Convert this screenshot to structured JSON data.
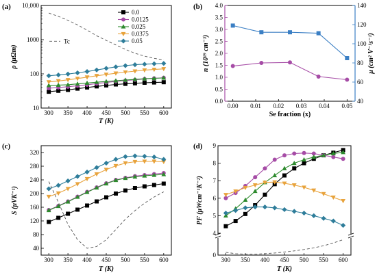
{
  "chart_data": [
    {
      "id": "a",
      "panel_label": "(a)",
      "type": "line",
      "scale_y": "log",
      "xlabel": "T (K)",
      "ylabel": "ρ (μΩm)",
      "xlim": [
        280,
        620
      ],
      "ylim": [
        10,
        10000
      ],
      "xticks": [
        300,
        350,
        400,
        450,
        500,
        550,
        600
      ],
      "yticks": [
        {
          "v": 10,
          "label": "10"
        },
        {
          "v": 100,
          "label": "100"
        },
        {
          "v": 1000,
          "label": "1000"
        },
        {
          "v": 10000,
          "label": "10,000"
        }
      ],
      "legend": {
        "placement": "top-right"
      },
      "x": [
        300,
        325,
        350,
        375,
        400,
        425,
        450,
        475,
        500,
        525,
        550,
        575,
        600
      ],
      "series": [
        {
          "name": "0.0",
          "color": "#000000",
          "marker": "square",
          "values": [
            30,
            32,
            34,
            37,
            40,
            43,
            46,
            49,
            51,
            53,
            55,
            56,
            57
          ]
        },
        {
          "name": "0.0125",
          "color": "#a64ca6",
          "marker": "circle",
          "values": [
            38,
            40,
            42,
            45,
            48,
            52,
            56,
            60,
            64,
            67,
            71,
            74,
            77
          ]
        },
        {
          "name": "0.025",
          "color": "#2d8a2d",
          "marker": "triangle-up",
          "values": [
            46,
            47,
            48,
            51,
            54,
            57,
            60,
            63,
            66,
            69,
            72,
            74,
            76
          ]
        },
        {
          "name": "0.0375",
          "color": "#e8a33c",
          "marker": "triangle-down",
          "values": [
            58,
            62,
            67,
            73,
            80,
            88,
            96,
            104,
            112,
            120,
            128,
            134,
            140
          ]
        },
        {
          "name": "0.05",
          "color": "#2e7d9a",
          "marker": "diamond",
          "values": [
            88,
            93,
            99,
            107,
            117,
            130,
            145,
            160,
            174,
            185,
            192,
            197,
            202
          ]
        },
        {
          "name": "Tc",
          "color": "#555555",
          "dashed": true,
          "values": [
            6000,
            4800,
            3700,
            2700,
            1900,
            1300,
            950,
            700,
            520,
            400,
            330,
            285,
            255
          ]
        }
      ]
    },
    {
      "id": "b",
      "panel_label": "(b)",
      "type": "line",
      "xlabel": "Se fraction (x)",
      "ylabel_left": "n (10¹⁹ cm⁻³)",
      "ylabel_right": "μ (cm² V⁻¹s⁻¹)",
      "xlim": [
        -0.0035,
        0.0535
      ],
      "ylim_left": [
        0,
        4.0
      ],
      "ylim_right": [
        40,
        140
      ],
      "xticks": [
        {
          "v": 0,
          "label": "0.00"
        },
        {
          "v": 0.01,
          "label": "0.01"
        },
        {
          "v": 0.02,
          "label": "0.02"
        },
        {
          "v": 0.03,
          "label": "0.03"
        },
        {
          "v": 0.04,
          "label": "0.04"
        },
        {
          "v": 0.05,
          "label": "0.05"
        }
      ],
      "yticks_left": [
        "0.0",
        "0.5",
        "1.0",
        "1.5",
        "2.0",
        "2.5",
        "3.0",
        "3.5",
        "4.0"
      ],
      "yticks_right": [
        "40",
        "60",
        "80",
        "100",
        "120",
        "140"
      ],
      "x": [
        0,
        0.0125,
        0.025,
        0.0375,
        0.05
      ],
      "series": [
        {
          "name": "n",
          "axis": "left",
          "color": "#a64ca6",
          "marker": "circle",
          "values": [
            1.47,
            1.6,
            1.62,
            1.03,
            0.9
          ]
        },
        {
          "name": "μ",
          "axis": "right",
          "color": "#3b7fc4",
          "marker": "square",
          "values": [
            119,
            112,
            112,
            111,
            85
          ]
        }
      ]
    },
    {
      "id": "c",
      "panel_label": "(c)",
      "type": "line",
      "xlabel": "T (K)",
      "ylabel": "S (μVK⁻¹)",
      "xlim": [
        280,
        620
      ],
      "ylim": [
        20,
        340
      ],
      "xticks": [
        300,
        350,
        400,
        450,
        500,
        550,
        600
      ],
      "yticks": [
        40,
        80,
        120,
        160,
        200,
        240,
        280,
        320
      ],
      "x": [
        300,
        325,
        350,
        375,
        400,
        425,
        450,
        475,
        500,
        525,
        550,
        575,
        600
      ],
      "series": [
        {
          "name": "0.0",
          "color": "#000000",
          "marker": "square",
          "values": [
            117,
            129,
            141,
            153,
            165,
            177,
            189,
            200,
            209,
            216,
            221,
            225,
            229
          ]
        },
        {
          "name": "0.0125",
          "color": "#a64ca6",
          "marker": "circle",
          "values": [
            152,
            164,
            177,
            191,
            205,
            218,
            230,
            240,
            246,
            251,
            254,
            257,
            260
          ]
        },
        {
          "name": "0.025",
          "color": "#2d8a2d",
          "marker": "triangle-up",
          "values": [
            151,
            163,
            176,
            190,
            204,
            217,
            229,
            239,
            245,
            249,
            252,
            254,
            256
          ]
        },
        {
          "name": "0.0375",
          "color": "#e8a33c",
          "marker": "triangle-down",
          "values": [
            191,
            201,
            214,
            228,
            243,
            257,
            270,
            281,
            289,
            293,
            294,
            294,
            293
          ]
        },
        {
          "name": "0.05",
          "color": "#2e7d9a",
          "marker": "diamond",
          "values": [
            214,
            224,
            237,
            250,
            263,
            276,
            289,
            300,
            308,
            310,
            309,
            307,
            300
          ]
        },
        {
          "name": "Tc",
          "color": "#555555",
          "dashed": true,
          "values": [
            235,
            175,
            110,
            65,
            40,
            45,
            65,
            95,
            125,
            150,
            172,
            190,
            205
          ]
        }
      ]
    },
    {
      "id": "d",
      "panel_label": "(d)",
      "type": "line",
      "xlabel": "T (K)",
      "ylabel": "PF (μWcm⁻¹K⁻²)",
      "xlim": [
        280,
        620
      ],
      "ylim": [
        0,
        9
      ],
      "broken_axis": [
        0.7,
        4
      ],
      "xticks": [
        300,
        350,
        400,
        450,
        500,
        550,
        600
      ],
      "yticks": [
        0,
        4,
        5,
        6,
        7,
        8,
        9
      ],
      "x": [
        300,
        325,
        350,
        375,
        400,
        425,
        450,
        475,
        500,
        525,
        550,
        575,
        600
      ],
      "series": [
        {
          "name": "0.0",
          "color": "#000000",
          "marker": "square",
          "values": [
            4.4,
            4.7,
            5.1,
            5.6,
            6.2,
            6.8,
            7.3,
            7.7,
            8.0,
            8.25,
            8.45,
            8.6,
            8.75
          ]
        },
        {
          "name": "0.0125",
          "color": "#a64ca6",
          "marker": "circle",
          "values": [
            6.0,
            6.3,
            6.7,
            7.2,
            7.7,
            8.2,
            8.45,
            8.55,
            8.58,
            8.55,
            8.45,
            8.35,
            8.25
          ]
        },
        {
          "name": "0.025",
          "color": "#2d8a2d",
          "marker": "triangle-up",
          "values": [
            5.0,
            5.4,
            5.9,
            6.4,
            6.9,
            7.3,
            7.7,
            8.0,
            8.2,
            8.35,
            8.45,
            8.55,
            8.62
          ]
        },
        {
          "name": "0.0375",
          "color": "#e8a33c",
          "marker": "triangle-down",
          "values": [
            6.2,
            6.4,
            6.6,
            6.75,
            6.9,
            6.92,
            6.85,
            6.75,
            6.62,
            6.45,
            6.25,
            6.05,
            5.85
          ]
        },
        {
          "name": "0.05",
          "color": "#2e7d9a",
          "marker": "diamond",
          "values": [
            5.15,
            5.3,
            5.45,
            5.5,
            5.5,
            5.45,
            5.35,
            5.25,
            5.15,
            5.0,
            4.85,
            4.7,
            4.45
          ]
        },
        {
          "name": "Tc",
          "color": "#555555",
          "dashed": true,
          "values": [
            0.12,
            0.06,
            0.04,
            0.04,
            0.06,
            0.09,
            0.13,
            0.18,
            0.24,
            0.31,
            0.4,
            0.52,
            0.66
          ]
        }
      ]
    }
  ]
}
